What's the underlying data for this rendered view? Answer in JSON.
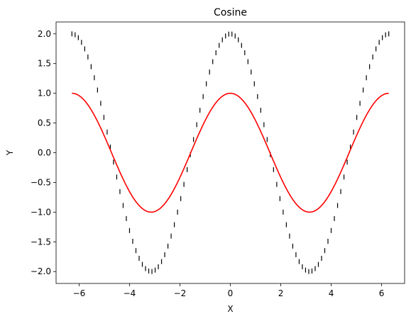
{
  "chart_data": {
    "type": "line",
    "title": "Cosine",
    "xlabel": "X",
    "ylabel": "Y",
    "xlim": [
      -6.9115,
      6.9115
    ],
    "ylim": [
      -2.2,
      2.2
    ],
    "grid": false,
    "legend": "none",
    "xticks": [
      -6,
      -4,
      -2,
      0,
      2,
      4,
      6
    ],
    "xtick_labels": [
      "−6",
      "−4",
      "−2",
      "0",
      "2",
      "4",
      "6"
    ],
    "yticks": [
      -2.0,
      -1.5,
      -1.0,
      -0.5,
      0.0,
      0.5,
      1.0,
      1.5,
      2.0
    ],
    "ytick_labels": [
      "−2.0",
      "−1.5",
      "−1.0",
      "−0.5",
      "0.0",
      "0.5",
      "1.0",
      "1.5",
      "2.0"
    ],
    "series": [
      {
        "function": "cos(x)",
        "x_range": [
          -6.2832,
          6.2832
        ],
        "color": "#ff0000",
        "style": "solid line"
      },
      {
        "function": "2*cos(x)",
        "x_range": [
          -6.2832,
          6.2832
        ],
        "samples": 100,
        "color": "#000000",
        "style": "vertical-line markers"
      }
    ]
  }
}
